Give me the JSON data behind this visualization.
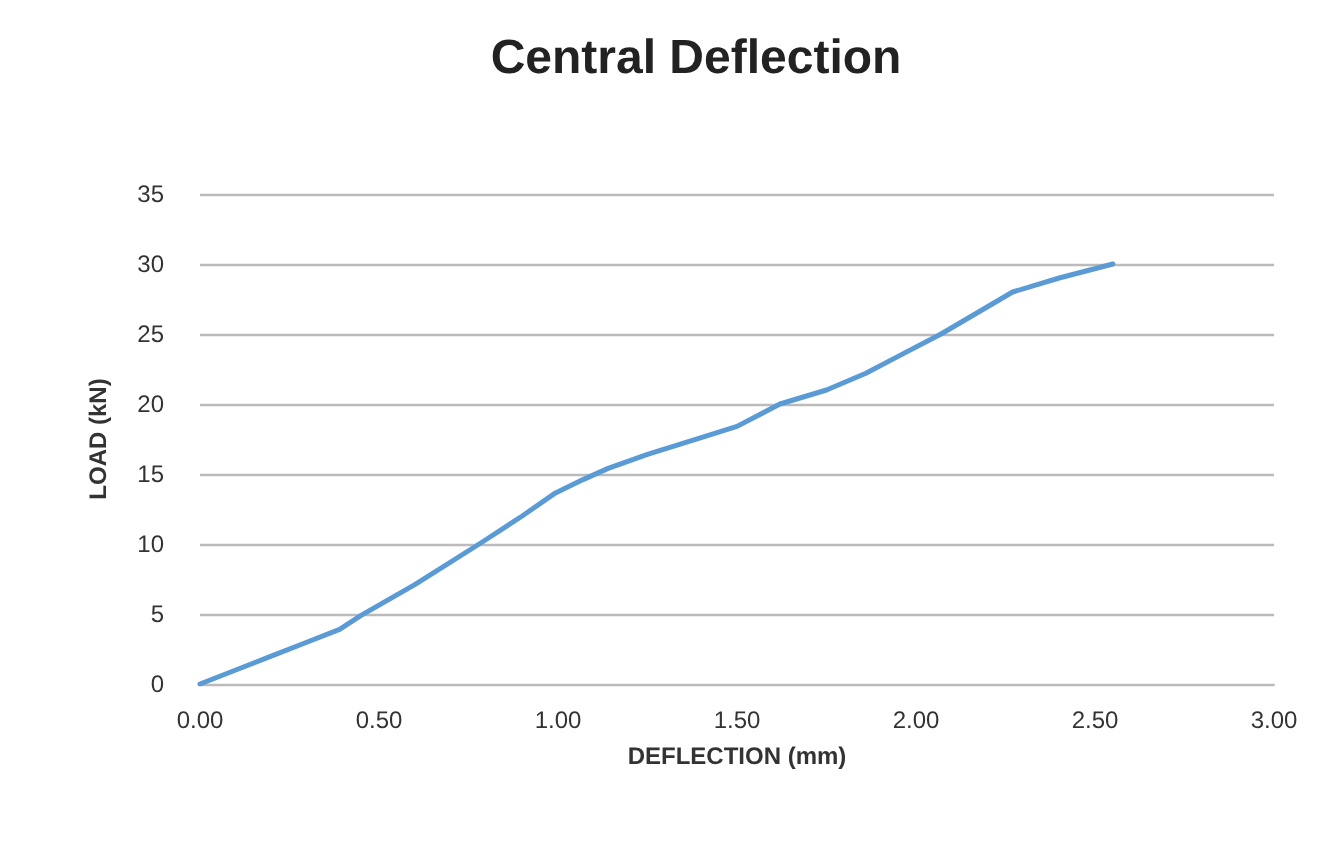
{
  "chart_data": {
    "type": "line",
    "title": "Central Deflection",
    "xlabel": "DEFLECTION (mm)",
    "ylabel": "LOAD (kN)",
    "series": [
      {
        "color": "#5b9bd5",
        "x": [
          0,
          0.1,
          0.19,
          0.3,
          0.39,
          0.45,
          0.6,
          0.78,
          0.9,
          0.99,
          1.07,
          1.14,
          1.25,
          1.4,
          1.5,
          1.62,
          1.75,
          1.86,
          1.95,
          2.07,
          2.17,
          2.27,
          2.4,
          2.55
        ],
        "values": [
          0,
          1.0,
          1.9,
          3.0,
          3.9,
          4.9,
          7.1,
          10,
          12,
          13.6,
          14.6,
          15.4,
          16.4,
          17.6,
          18.4,
          20,
          21,
          22.2,
          23.4,
          25,
          26.5,
          28,
          29,
          30
        ]
      }
    ],
    "xlim": [
      0,
      3
    ],
    "xticks": [
      {
        "value": 0,
        "label": "0.00"
      },
      {
        "value": 0.5,
        "label": "0.50"
      },
      {
        "value": 1,
        "label": "1.00"
      },
      {
        "value": 1.5,
        "label": "1.50"
      },
      {
        "value": 2,
        "label": "2.00"
      },
      {
        "value": 2.5,
        "label": "2.50"
      },
      {
        "value": 3,
        "label": "3.00"
      }
    ],
    "ylim": [
      0,
      35
    ],
    "yticks": [
      0,
      5,
      10,
      15,
      20,
      25,
      30,
      35
    ],
    "grid": "y",
    "marker": "none",
    "line_style": "solid"
  }
}
